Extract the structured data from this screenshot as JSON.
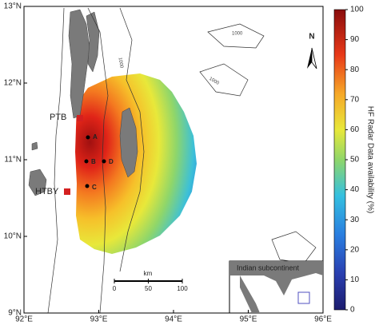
{
  "map": {
    "xticks": [
      {
        "value": 92,
        "label": "92°E"
      },
      {
        "value": 93,
        "label": "93°E"
      },
      {
        "value": 94,
        "label": "94°E"
      },
      {
        "value": 95,
        "label": "95°E"
      },
      {
        "value": 96,
        "label": "96°E"
      }
    ],
    "yticks": [
      {
        "value": 9,
        "label": "9°N"
      },
      {
        "value": 10,
        "label": "10°N"
      },
      {
        "value": 11,
        "label": "11°N"
      },
      {
        "value": 12,
        "label": "12°N"
      },
      {
        "value": 13,
        "label": "13°N"
      }
    ],
    "xlim": [
      92,
      96
    ],
    "ylim": [
      9,
      13
    ],
    "stations": [
      "PTB",
      "HTBY"
    ],
    "points": [
      "A",
      "B",
      "C",
      "D"
    ],
    "contour_labels": [
      "1000",
      "1000",
      "1000"
    ],
    "north": "N",
    "scale_bar": {
      "unit": "km",
      "ticks": [
        0,
        50,
        100
      ],
      "lim": [
        0,
        100
      ]
    },
    "inset": {
      "label": "Indian subcontinent"
    },
    "colorbar": {
      "label": "HF Radar Data availability (%)",
      "lim": [
        0,
        100
      ],
      "ticks": [
        0,
        10,
        20,
        30,
        40,
        50,
        60,
        70,
        80,
        90,
        100
      ]
    }
  }
}
